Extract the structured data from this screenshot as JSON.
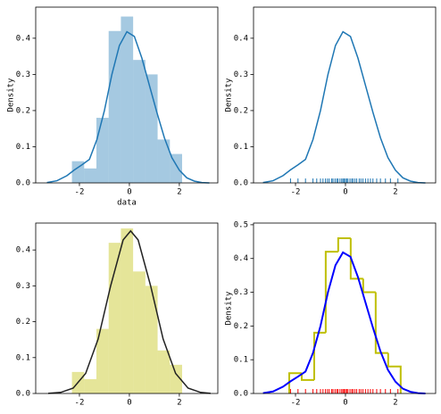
{
  "chart_data": [
    {
      "type": "histogram",
      "xlabel": "data",
      "ylabel": "Density",
      "bins": [
        -2.3,
        -1.81,
        -1.32,
        -0.83,
        -0.34,
        0.15,
        0.64,
        1.13,
        1.62,
        2.11
      ],
      "counts": [
        0.06,
        0.04,
        0.18,
        0.42,
        0.46,
        0.34,
        0.3,
        0.12,
        0.08
      ],
      "hist_color": "#1f77b4",
      "hist_style": "bar",
      "curve": {
        "x": [
          -3.3,
          -2.9,
          -2.5,
          -2.2,
          -1.9,
          -1.6,
          -1.3,
          -1.0,
          -0.7,
          -0.4,
          -0.1,
          0.2,
          0.5,
          0.8,
          1.1,
          1.4,
          1.7,
          2.0,
          2.3,
          2.6,
          2.9,
          3.2
        ],
        "values": [
          0.001,
          0.006,
          0.02,
          0.036,
          0.05,
          0.065,
          0.12,
          0.2,
          0.3,
          0.38,
          0.418,
          0.405,
          0.345,
          0.27,
          0.195,
          0.125,
          0.07,
          0.035,
          0.014,
          0.005,
          0.001,
          0.0
        ],
        "color": "#1f77b4"
      },
      "xlim": [
        -3.75,
        3.54
      ],
      "xticks": [
        -2,
        0,
        2
      ],
      "ylim": [
        0,
        0.486
      ],
      "yticks": [
        {
          "value": 0,
          "label": "0.0"
        },
        0.1,
        0.2,
        0.3,
        0.4
      ]
    },
    {
      "type": "line",
      "ylabel": "Density",
      "curve": {
        "x": [
          -3.3,
          -2.9,
          -2.5,
          -2.2,
          -1.9,
          -1.6,
          -1.3,
          -1.0,
          -0.7,
          -0.4,
          -0.1,
          0.2,
          0.5,
          0.8,
          1.1,
          1.4,
          1.7,
          2.0,
          2.3,
          2.6,
          2.9,
          3.2
        ],
        "values": [
          0.001,
          0.006,
          0.02,
          0.036,
          0.05,
          0.065,
          0.12,
          0.2,
          0.3,
          0.38,
          0.418,
          0.405,
          0.345,
          0.27,
          0.195,
          0.125,
          0.07,
          0.035,
          0.014,
          0.005,
          0.001,
          0.0
        ],
        "color": "#1f77b4"
      },
      "rug": {
        "x": [
          -2.2,
          -1.9,
          -1.6,
          -1.3,
          -1.15,
          -1.0,
          -0.9,
          -0.8,
          -0.72,
          -0.65,
          -0.55,
          -0.5,
          -0.42,
          -0.35,
          -0.3,
          -0.22,
          -0.15,
          -0.1,
          -0.05,
          0.0,
          0.05,
          0.1,
          0.18,
          0.25,
          0.3,
          0.38,
          0.45,
          0.55,
          0.62,
          0.7,
          0.8,
          0.9,
          1.0,
          1.1,
          1.25,
          1.4,
          1.6,
          1.8,
          2.1
        ],
        "color": "#1f77b4"
      },
      "xlim": [
        -3.68,
        3.61
      ],
      "xticks": [
        -2,
        0,
        2
      ],
      "ylim": [
        0,
        0.486
      ],
      "yticks": [
        {
          "value": 0,
          "label": "0.0"
        },
        0.1,
        0.2,
        0.3,
        0.4
      ]
    },
    {
      "type": "histogram",
      "bins": [
        -2.3,
        -1.81,
        -1.32,
        -0.83,
        -0.34,
        0.15,
        0.64,
        1.13,
        1.62,
        2.11
      ],
      "counts": [
        0.06,
        0.04,
        0.18,
        0.42,
        0.46,
        0.34,
        0.3,
        0.12,
        0.08
      ],
      "hist_color": "#bfbf00",
      "hist_style": "bar",
      "curve": {
        "x": [
          -3.25,
          -2.75,
          -2.25,
          -1.75,
          -1.25,
          -0.75,
          -0.25,
          0.05,
          0.35,
          0.85,
          1.35,
          1.85,
          2.35,
          2.85,
          3.25
        ],
        "values": [
          0.0004,
          0.003,
          0.015,
          0.056,
          0.152,
          0.3,
          0.428,
          0.453,
          0.428,
          0.3,
          0.152,
          0.056,
          0.015,
          0.003,
          0.0004
        ],
        "color": "#222222"
      },
      "xlim": [
        -3.75,
        3.54
      ],
      "xticks": [
        -2,
        0,
        2
      ],
      "ylim": [
        0,
        0.475
      ],
      "yticks": [
        {
          "value": 0,
          "label": "0.0"
        },
        0.1,
        0.2,
        0.3,
        0.4
      ]
    },
    {
      "type": "histogram",
      "ylabel": "Density",
      "bins": [
        -2.25,
        -1.75,
        -1.25,
        -0.79,
        -0.29,
        0.21,
        0.71,
        1.21,
        1.71,
        2.21
      ],
      "counts": [
        0.06,
        0.04,
        0.18,
        0.42,
        0.46,
        0.34,
        0.3,
        0.12,
        0.08
      ],
      "hist_color": "#bfbf00",
      "hist_style": "step",
      "curve": {
        "x": [
          -3.3,
          -2.9,
          -2.5,
          -2.2,
          -1.9,
          -1.6,
          -1.3,
          -1.0,
          -0.7,
          -0.4,
          -0.1,
          0.2,
          0.5,
          0.8,
          1.1,
          1.4,
          1.7,
          2.0,
          2.3,
          2.6,
          2.9,
          3.2
        ],
        "values": [
          0.001,
          0.006,
          0.02,
          0.036,
          0.05,
          0.065,
          0.12,
          0.2,
          0.3,
          0.38,
          0.418,
          0.405,
          0.345,
          0.27,
          0.195,
          0.125,
          0.07,
          0.035,
          0.014,
          0.005,
          0.001,
          0.0
        ],
        "color": "#0000ff"
      },
      "rug": {
        "x": [
          -2.2,
          -1.9,
          -1.6,
          -1.3,
          -1.15,
          -1.0,
          -0.9,
          -0.8,
          -0.72,
          -0.65,
          -0.55,
          -0.5,
          -0.42,
          -0.35,
          -0.3,
          -0.22,
          -0.15,
          -0.1,
          -0.05,
          0.0,
          0.05,
          0.1,
          0.18,
          0.25,
          0.3,
          0.38,
          0.45,
          0.55,
          0.62,
          0.7,
          0.8,
          0.9,
          1.0,
          1.1,
          1.25,
          1.4,
          1.6,
          1.8,
          2.1
        ],
        "color": "#ff0000"
      },
      "xlim": [
        -3.68,
        3.61
      ],
      "xticks": [
        -2,
        0,
        2
      ],
      "ylim": [
        0,
        0.505
      ],
      "yticks": [
        {
          "value": 0,
          "label": "0.0"
        },
        0.1,
        0.2,
        0.3,
        0.4,
        0.5
      ]
    }
  ]
}
